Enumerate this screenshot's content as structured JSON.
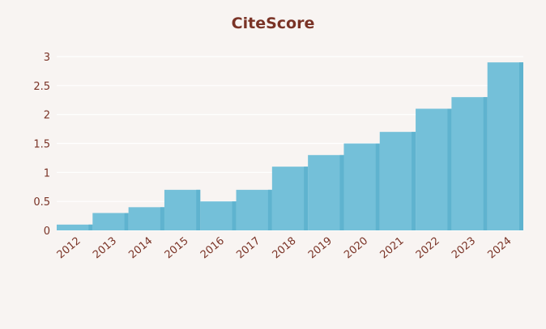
{
  "chart_data": {
    "type": "bar",
    "title": "CiteScore",
    "xlabel": "",
    "ylabel": "",
    "categories": [
      "2012",
      "2013",
      "2014",
      "2015",
      "2016",
      "2017",
      "2018",
      "2019",
      "2020",
      "2021",
      "2022",
      "2023",
      "2024"
    ],
    "values": [
      0.1,
      0.3,
      0.4,
      0.7,
      0.5,
      0.7,
      1.1,
      1.3,
      1.5,
      1.7,
      2.1,
      2.3,
      2.9
    ],
    "ylim": [
      0,
      3
    ],
    "yticks": [
      "0",
      "0.5",
      "1",
      "1.5",
      "2",
      "2.5",
      "3"
    ],
    "grid": true,
    "colors": {
      "bar": "#74c0d9",
      "bar_edge": "#5fb3cf",
      "text": "#7a3326",
      "grid": "#ffffff",
      "background": "#f8f4f2"
    }
  }
}
